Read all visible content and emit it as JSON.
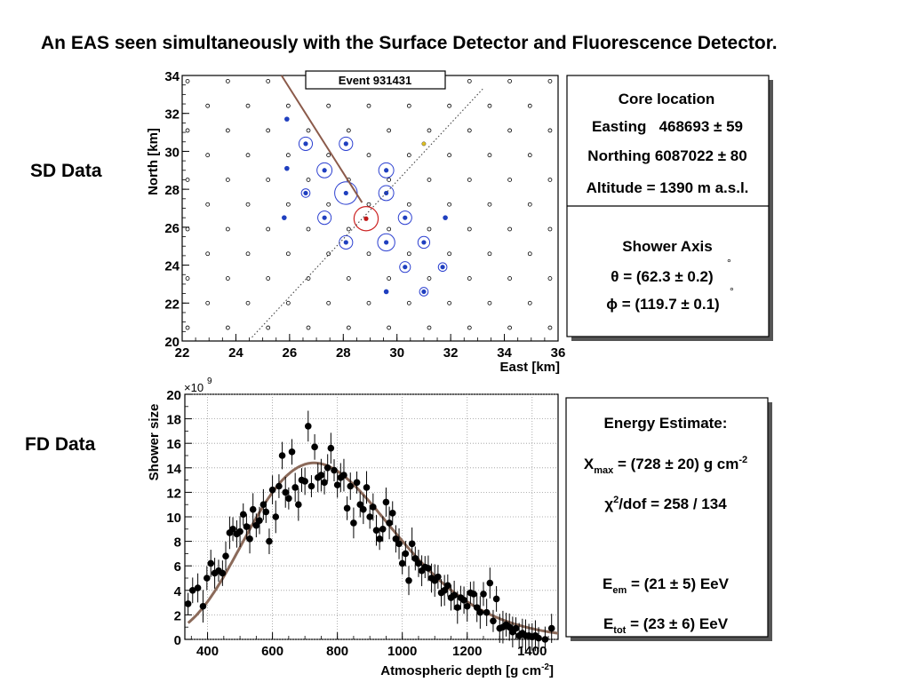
{
  "slide": {
    "title": "An EAS seen simultaneously with the Surface Detector and Fluorescence Detector.",
    "sd_label": "SD Data",
    "fd_label": "FD Data"
  },
  "sd_panel": {
    "event_label": "Event 931431",
    "core_box": {
      "heading": "Core location",
      "easting": "Easting   468693 ± 59",
      "northing": "Northing 6087022 ± 80",
      "altitude": "Altitude = 1390 m a.s.l."
    },
    "axis_box": {
      "heading": "Shower Axis",
      "theta": "θ = (62.3 ± 0.2)",
      "phi": "ϕ = (119.7 ± 0.1)",
      "degree_symbol": "°"
    }
  },
  "fd_panel": {
    "exponent_label": "×10",
    "exponent_power": "9",
    "energy_box": {
      "heading": "Energy Estimate:",
      "xmax_pre": "X",
      "xmax_sub": "max",
      "xmax_post": " = (728 ± 20) g cm",
      "xmax_sup": "-2",
      "chi_pre": "χ",
      "chi_sup": "2",
      "chi_post": "/dof = 258 / 134",
      "eem_pre": "E",
      "eem_sub": "em",
      "eem_post": " = (21 ± 5) EeV",
      "etot_pre": "E",
      "etot_sub": "tot",
      "etot_post": " = (23 ± 6) EeV"
    }
  },
  "chart_data": [
    {
      "type": "scatter",
      "xlabel": "East  [km]",
      "ylabel": "North  [km]",
      "xlim": [
        22,
        36
      ],
      "ylim": [
        20,
        34
      ],
      "xticks": [
        "22",
        "24",
        "26",
        "28",
        "30",
        "32",
        "34",
        "36"
      ],
      "yticks": [
        "20",
        "22",
        "24",
        "26",
        "28",
        "30",
        "32",
        "34"
      ],
      "lines": [
        {
          "style": "solid",
          "color": "#8b5a4a",
          "points": [
            [
              25.7,
              34
            ],
            [
              28.7,
              27.3
            ]
          ]
        },
        {
          "style": "dotted",
          "color": "#444444",
          "points": [
            [
              24.6,
              20.2
            ],
            [
              33.2,
              33.3
            ]
          ]
        }
      ],
      "core": {
        "x": 28.85,
        "y": 26.45,
        "color": "#cc2222"
      },
      "hit_detectors": [
        {
          "x": 26.6,
          "y": 30.4,
          "r": 0.25
        },
        {
          "x": 28.1,
          "y": 30.4,
          "r": 0.25
        },
        {
          "x": 27.3,
          "y": 29.0,
          "r": 0.28
        },
        {
          "x": 29.6,
          "y": 29.0,
          "r": 0.28
        },
        {
          "x": 26.6,
          "y": 27.8,
          "r": 0.16
        },
        {
          "x": 28.1,
          "y": 27.8,
          "r": 0.42
        },
        {
          "x": 29.6,
          "y": 27.8,
          "r": 0.28
        },
        {
          "x": 27.3,
          "y": 26.5,
          "r": 0.25
        },
        {
          "x": 30.3,
          "y": 26.5,
          "r": 0.25
        },
        {
          "x": 28.1,
          "y": 25.2,
          "r": 0.25
        },
        {
          "x": 29.6,
          "y": 25.2,
          "r": 0.32
        },
        {
          "x": 31.0,
          "y": 25.2,
          "r": 0.22
        },
        {
          "x": 30.3,
          "y": 23.9,
          "r": 0.2
        },
        {
          "x": 31.7,
          "y": 23.9,
          "r": 0.16
        },
        {
          "x": 31.0,
          "y": 22.6,
          "r": 0.16
        }
      ],
      "small_blue_detectors": [
        [
          25.9,
          31.7
        ],
        [
          25.9,
          29.1
        ],
        [
          25.8,
          26.5
        ],
        [
          31.8,
          26.5
        ],
        [
          29.6,
          22.6
        ]
      ],
      "yellow_detectors": [
        [
          31.0,
          30.4
        ]
      ]
    },
    {
      "type": "scatter",
      "xlabel": "Atmospheric depth [g cm",
      "xlabel_sup": "-2",
      "xlabel_end": "]",
      "ylabel": "Shower size",
      "xlim": [
        330,
        1480
      ],
      "ylim": [
        0,
        20
      ],
      "xticks": [
        "400",
        "600",
        "800",
        "1000",
        "1200",
        "1400"
      ],
      "yticks": [
        "0",
        "2",
        "4",
        "6",
        "8",
        "10",
        "12",
        "14",
        "16",
        "18",
        "20"
      ],
      "fit_curve": {
        "model": "gaisser-hillas",
        "xmax": 728,
        "nmax": 14.4
      },
      "points": [
        [
          340,
          2.9
        ],
        [
          354,
          4.0
        ],
        [
          370,
          4.2
        ],
        [
          386,
          2.7
        ],
        [
          398,
          5.0
        ],
        [
          410,
          6.2
        ],
        [
          422,
          5.4
        ],
        [
          434,
          5.6
        ],
        [
          446,
          5.4
        ],
        [
          456,
          6.8
        ],
        [
          468,
          8.7
        ],
        [
          478,
          9.0
        ],
        [
          490,
          8.6
        ],
        [
          500,
          8.8
        ],
        [
          510,
          10.2
        ],
        [
          520,
          9.2
        ],
        [
          530,
          8.2
        ],
        [
          540,
          10.6
        ],
        [
          550,
          9.3
        ],
        [
          560,
          9.7
        ],
        [
          572,
          11.0
        ],
        [
          580,
          10.4
        ],
        [
          590,
          8.0
        ],
        [
          600,
          12.2
        ],
        [
          610,
          10.0
        ],
        [
          620,
          12.5
        ],
        [
          630,
          15.0
        ],
        [
          640,
          12.0
        ],
        [
          650,
          11.5
        ],
        [
          660,
          15.3
        ],
        [
          670,
          12.4
        ],
        [
          680,
          11.0
        ],
        [
          690,
          13.0
        ],
        [
          700,
          12.9
        ],
        [
          710,
          17.4
        ],
        [
          720,
          12.5
        ],
        [
          730,
          15.7
        ],
        [
          740,
          13.2
        ],
        [
          750,
          13.4
        ],
        [
          760,
          12.8
        ],
        [
          770,
          14.0
        ],
        [
          780,
          15.6
        ],
        [
          790,
          13.8
        ],
        [
          800,
          12.6
        ],
        [
          810,
          13.2
        ],
        [
          820,
          13.4
        ],
        [
          830,
          10.7
        ],
        [
          840,
          12.5
        ],
        [
          850,
          9.5
        ],
        [
          860,
          12.8
        ],
        [
          870,
          11.0
        ],
        [
          880,
          10.6
        ],
        [
          890,
          12.4
        ],
        [
          900,
          10.0
        ],
        [
          910,
          10.8
        ],
        [
          920,
          8.9
        ],
        [
          930,
          8.2
        ],
        [
          940,
          9.0
        ],
        [
          950,
          11.2
        ],
        [
          960,
          9.5
        ],
        [
          970,
          10.3
        ],
        [
          980,
          8.2
        ],
        [
          990,
          7.8
        ],
        [
          1000,
          6.2
        ],
        [
          1010,
          7.0
        ],
        [
          1020,
          4.8
        ],
        [
          1030,
          7.8
        ],
        [
          1040,
          6.6
        ],
        [
          1050,
          6.2
        ],
        [
          1060,
          5.6
        ],
        [
          1070,
          5.9
        ],
        [
          1080,
          5.8
        ],
        [
          1090,
          5.0
        ],
        [
          1100,
          4.8
        ],
        [
          1110,
          5.1
        ],
        [
          1120,
          3.8
        ],
        [
          1130,
          4.0
        ],
        [
          1140,
          4.4
        ],
        [
          1150,
          3.4
        ],
        [
          1160,
          3.6
        ],
        [
          1170,
          2.6
        ],
        [
          1180,
          3.4
        ],
        [
          1190,
          3.2
        ],
        [
          1200,
          2.7
        ],
        [
          1210,
          3.8
        ],
        [
          1220,
          3.7
        ],
        [
          1230,
          2.6
        ],
        [
          1240,
          2.2
        ],
        [
          1250,
          3.7
        ],
        [
          1260,
          2.2
        ],
        [
          1270,
          4.6
        ],
        [
          1280,
          1.5
        ],
        [
          1290,
          3.3
        ],
        [
          1300,
          0.9
        ],
        [
          1310,
          1.0
        ],
        [
          1320,
          1.2
        ],
        [
          1330,
          1.0
        ],
        [
          1340,
          0.6
        ],
        [
          1350,
          0.9
        ],
        [
          1360,
          0.3
        ],
        [
          1370,
          0.5
        ],
        [
          1380,
          0.3
        ],
        [
          1390,
          0.3
        ],
        [
          1400,
          0.2
        ],
        [
          1410,
          0.3
        ],
        [
          1420,
          0.1
        ],
        [
          1440,
          0.0
        ],
        [
          1460,
          0.9
        ]
      ]
    }
  ]
}
